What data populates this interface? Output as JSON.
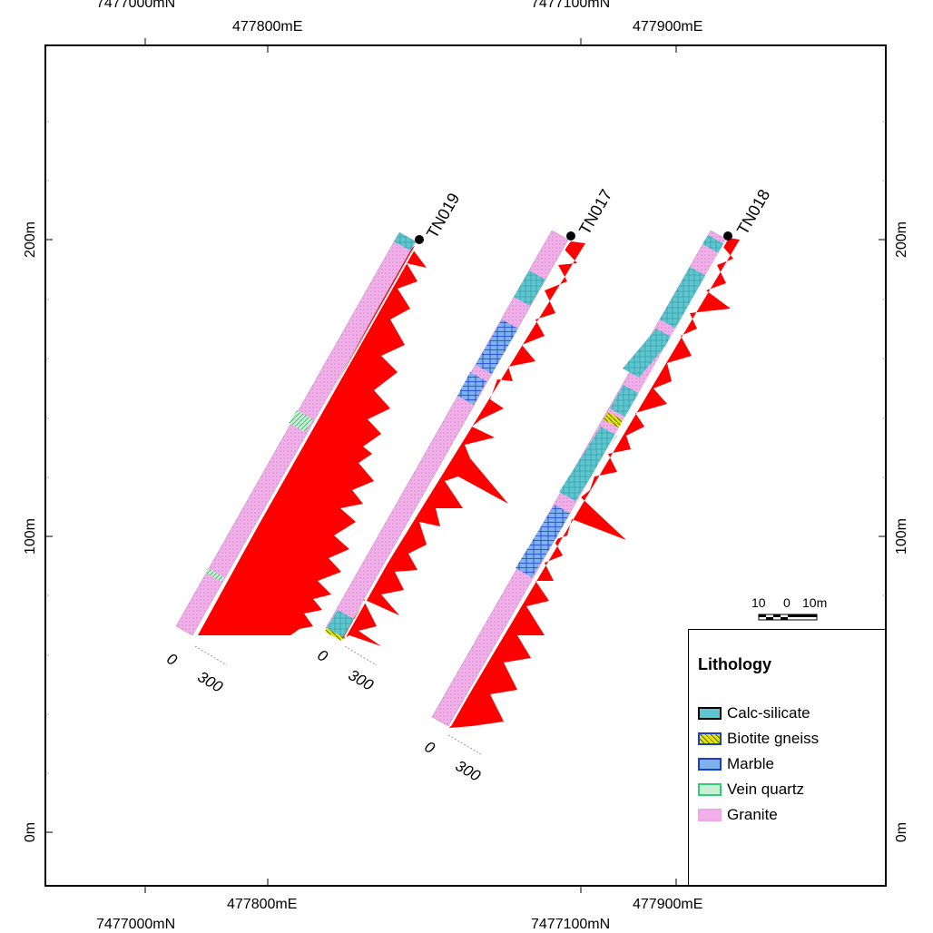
{
  "map": {
    "top_north_labels": [
      "7477000mN",
      "7477100mN"
    ],
    "top_east_labels": [
      "477800mE",
      "477900mE"
    ],
    "bottom_east_labels": [
      "477800mE",
      "477900mE"
    ],
    "bottom_north_labels": [
      "7477000mN",
      "7477100mN"
    ],
    "left_elevation_labels": [
      "200m",
      "100m",
      "0m"
    ],
    "right_elevation_labels": [
      "200m",
      "100m",
      "0m"
    ]
  },
  "drillholes": [
    {
      "name": "TN019",
      "scale_min": "0",
      "scale_max": "300"
    },
    {
      "name": "TN017",
      "scale_min": "0",
      "scale_max": "300"
    },
    {
      "name": "TN018",
      "scale_min": "0",
      "scale_max": "300"
    }
  ],
  "scale_bar": {
    "left": "10",
    "mid": "0",
    "right": "10m"
  },
  "legend": {
    "title": "Lithology",
    "items": [
      {
        "name": "Calc-silicate",
        "color": "#4fc3c8"
      },
      {
        "name": "Biotite gneiss",
        "color": "#e8e800"
      },
      {
        "name": "Marble",
        "color": "#1a3ecf"
      },
      {
        "name": "Vein quartz",
        "color": "#33cc77"
      },
      {
        "name": "Granite",
        "color": "#f0a6e6"
      }
    ]
  },
  "colors": {
    "assay": "#ff0000",
    "granite": "#f0a6e6",
    "calc_silicate": "#5bbfd0",
    "marble": "#3a6fd8",
    "vein_quartz": "#8fe0a8",
    "biotite": "#e8e800"
  }
}
